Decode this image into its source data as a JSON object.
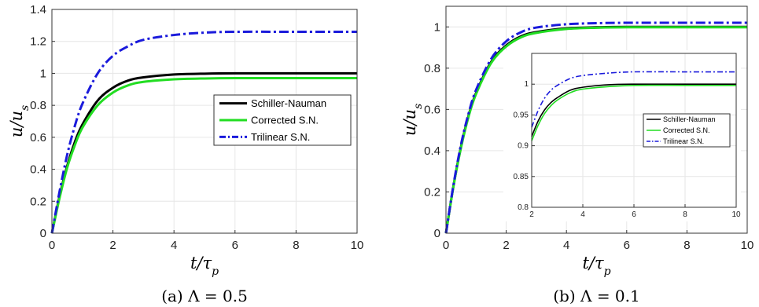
{
  "chart_data": [
    {
      "type": "line",
      "caption": "(a) Λ = 0.5",
      "xlabel": "t/τ_p",
      "ylabel": "u/u_s",
      "xlim": [
        0,
        10
      ],
      "ylim": [
        0,
        1.4
      ],
      "xticks": [
        "0",
        "2",
        "4",
        "6",
        "8",
        "10"
      ],
      "yticks": [
        "0",
        "0.2",
        "0.4",
        "0.6",
        "0.8",
        "1",
        "1.2",
        "1.4"
      ],
      "grid": true,
      "legend_position": "right-middle",
      "series": [
        {
          "name": "Schiller-Nauman",
          "color": "#000000",
          "style": "solid",
          "x": [
            0,
            0.25,
            0.5,
            0.75,
            1,
            1.5,
            2,
            2.5,
            3,
            4,
            5,
            6,
            8,
            10
          ],
          "y": [
            0,
            0.23,
            0.42,
            0.57,
            0.68,
            0.83,
            0.91,
            0.955,
            0.975,
            0.993,
            0.998,
            1.0,
            1.0,
            1.0
          ]
        },
        {
          "name": "Corrected S.N.",
          "color": "#22dd22",
          "style": "solid",
          "x": [
            0,
            0.25,
            0.5,
            0.75,
            1,
            1.5,
            2,
            2.5,
            3,
            4,
            5,
            6,
            8,
            10
          ],
          "y": [
            0,
            0.22,
            0.41,
            0.55,
            0.66,
            0.8,
            0.88,
            0.925,
            0.947,
            0.963,
            0.968,
            0.97,
            0.97,
            0.97
          ]
        },
        {
          "name": "Trilinear S.N.",
          "color": "#1a1adb",
          "style": "dash-dot",
          "x": [
            0,
            0.25,
            0.5,
            0.75,
            1,
            1.5,
            2,
            2.5,
            3,
            4,
            5,
            6,
            8,
            10
          ],
          "y": [
            0,
            0.26,
            0.49,
            0.67,
            0.81,
            1.0,
            1.11,
            1.17,
            1.21,
            1.24,
            1.255,
            1.26,
            1.26,
            1.26
          ]
        }
      ]
    },
    {
      "type": "line",
      "caption": "(b) Λ = 0.1",
      "xlabel": "t/τ_p",
      "ylabel": "u/u_s",
      "xlim": [
        0,
        10
      ],
      "ylim": [
        0,
        1.1
      ],
      "xticks": [
        "0",
        "2",
        "4",
        "6",
        "8",
        "10"
      ],
      "yticks": [
        "0",
        "0.2",
        "0.4",
        "0.6",
        "0.8",
        "1"
      ],
      "grid": true,
      "series": [
        {
          "name": "Schiller-Nauman",
          "color": "#000000",
          "style": "solid",
          "x": [
            0,
            0.25,
            0.5,
            0.75,
            1,
            1.5,
            2,
            2.5,
            3,
            4,
            5,
            6,
            8,
            10
          ],
          "y": [
            0,
            0.23,
            0.42,
            0.57,
            0.68,
            0.83,
            0.91,
            0.955,
            0.975,
            0.993,
            0.998,
            1.0,
            1.0,
            1.0
          ]
        },
        {
          "name": "Corrected S.N.",
          "color": "#22dd22",
          "style": "solid",
          "x": [
            0,
            0.25,
            0.5,
            0.75,
            1,
            1.5,
            2,
            2.5,
            3,
            4,
            5,
            6,
            8,
            10
          ],
          "y": [
            0,
            0.228,
            0.415,
            0.565,
            0.675,
            0.825,
            0.905,
            0.95,
            0.971,
            0.99,
            0.996,
            0.998,
            0.998,
            0.998
          ]
        },
        {
          "name": "Trilinear S.N.",
          "color": "#1a1adb",
          "style": "dash-dot",
          "x": [
            0,
            0.25,
            0.5,
            0.75,
            1,
            1.5,
            2,
            2.5,
            3,
            4,
            5,
            6,
            8,
            10
          ],
          "y": [
            0,
            0.235,
            0.43,
            0.58,
            0.695,
            0.845,
            0.93,
            0.975,
            0.997,
            1.013,
            1.018,
            1.02,
            1.02,
            1.02
          ]
        }
      ],
      "inset": {
        "xlim": [
          2,
          10
        ],
        "ylim": [
          0.8,
          1.05
        ],
        "xticks": [
          "2",
          "4",
          "6",
          "8",
          "10"
        ],
        "yticks": [
          "0.8",
          "0.85",
          "0.9",
          "0.95",
          "1"
        ],
        "legend_position": "right-middle",
        "series": [
          {
            "name": "Schiller-Nauman",
            "color": "#000000",
            "style": "solid",
            "x": [
              2,
              2.25,
              2.5,
              2.75,
              3,
              3.5,
              4,
              5,
              6,
              8,
              10
            ],
            "y": [
              0.915,
              0.94,
              0.958,
              0.97,
              0.978,
              0.99,
              0.995,
              0.999,
              1.0,
              1.0,
              1.0
            ]
          },
          {
            "name": "Corrected S.N.",
            "color": "#22dd22",
            "style": "solid",
            "x": [
              2,
              2.25,
              2.5,
              2.75,
              3,
              3.5,
              4,
              5,
              6,
              8,
              10
            ],
            "y": [
              0.908,
              0.933,
              0.952,
              0.965,
              0.974,
              0.986,
              0.992,
              0.996,
              0.998,
              0.998,
              0.998
            ]
          },
          {
            "name": "Trilinear S.N.",
            "color": "#1a1adb",
            "style": "dash-dot",
            "x": [
              2,
              2.25,
              2.5,
              2.75,
              3,
              3.5,
              4,
              5,
              6,
              8,
              10
            ],
            "y": [
              0.93,
              0.957,
              0.977,
              0.99,
              0.998,
              1.009,
              1.014,
              1.018,
              1.02,
              1.02,
              1.02
            ]
          }
        ]
      }
    }
  ]
}
